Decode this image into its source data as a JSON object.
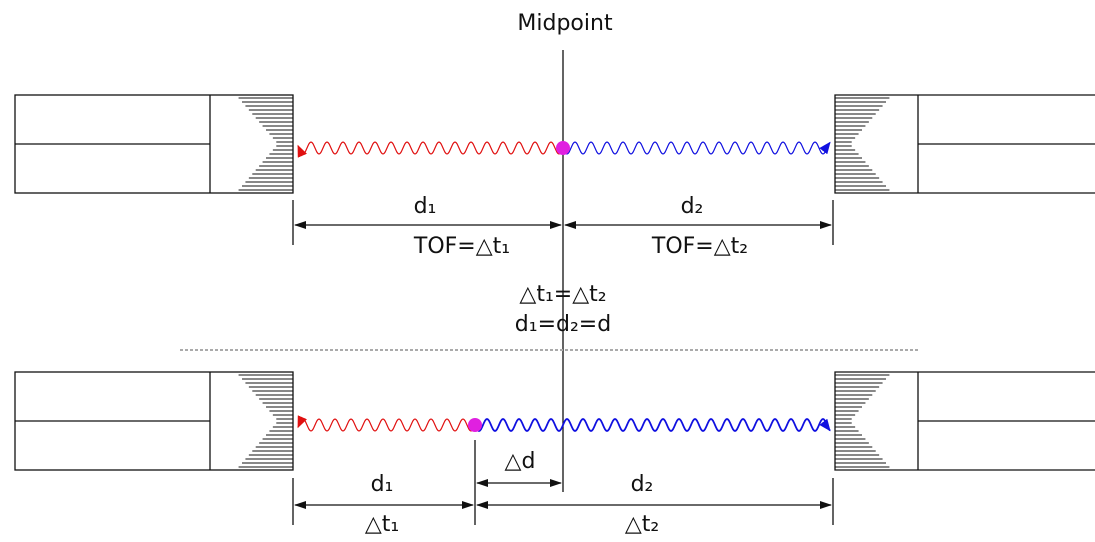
{
  "midpoint_label": "Midpoint",
  "top": {
    "d1": "d₁",
    "tof1": "TOF=△t₁",
    "d2": "d₂",
    "tof2": "TOF=△t₂",
    "condition_time": "△t₁=△t₂",
    "condition_distance": "d₁=d₂=d"
  },
  "bottom": {
    "d1": "d₁",
    "t1": "△t₁",
    "delta_d": "△d",
    "d2": "d₂",
    "t2": "△t₂"
  }
}
